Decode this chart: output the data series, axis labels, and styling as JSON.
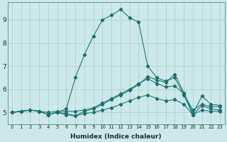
{
  "xlabel": "Humidex (Indice chaleur)",
  "background_color": "#cce8e8",
  "grid_color": "#aacccc",
  "line_color": "#1a7070",
  "xlim": [
    -0.5,
    23.5
  ],
  "ylim": [
    4.5,
    9.75
  ],
  "xticks": [
    0,
    1,
    2,
    3,
    4,
    5,
    6,
    7,
    8,
    9,
    10,
    11,
    12,
    13,
    14,
    15,
    16,
    17,
    18,
    19,
    20,
    21,
    22,
    23
  ],
  "yticks": [
    5,
    6,
    7,
    8,
    9
  ],
  "series": [
    [
      5.0,
      5.05,
      5.1,
      5.05,
      4.9,
      5.0,
      4.9,
      4.85,
      4.95,
      5.0,
      5.1,
      5.2,
      5.35,
      5.5,
      5.65,
      5.75,
      5.6,
      5.5,
      5.55,
      5.35,
      4.9,
      5.1,
      5.05,
      5.05
    ],
    [
      5.0,
      5.05,
      5.1,
      5.05,
      5.0,
      5.05,
      5.05,
      5.05,
      5.1,
      5.2,
      5.4,
      5.6,
      5.8,
      6.0,
      6.25,
      6.45,
      6.25,
      6.1,
      6.15,
      5.8,
      5.1,
      5.35,
      5.25,
      5.25
    ],
    [
      5.0,
      5.05,
      5.1,
      5.05,
      4.9,
      5.0,
      5.15,
      6.5,
      7.5,
      8.3,
      9.0,
      9.2,
      9.45,
      9.1,
      8.9,
      7.0,
      6.5,
      6.35,
      6.5,
      5.75,
      4.9,
      5.3,
      5.15,
      5.1
    ],
    [
      5.0,
      5.05,
      5.1,
      5.05,
      4.9,
      5.0,
      4.95,
      4.85,
      5.05,
      5.15,
      5.35,
      5.55,
      5.75,
      5.95,
      6.2,
      6.55,
      6.4,
      6.3,
      6.65,
      5.85,
      4.95,
      5.7,
      5.35,
      5.3
    ]
  ]
}
